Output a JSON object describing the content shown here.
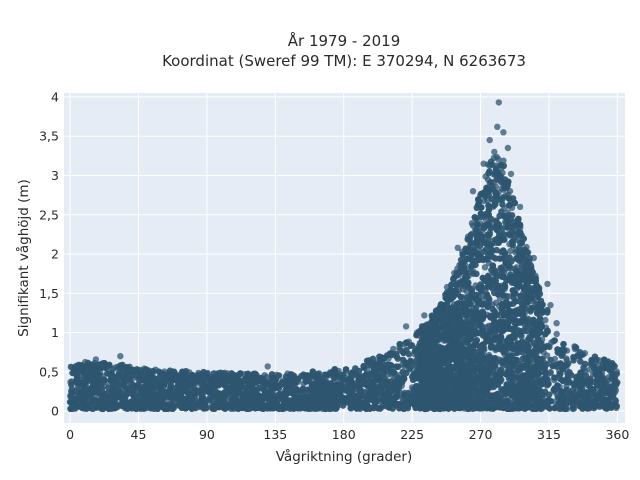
{
  "chart_data": {
    "type": "scatter",
    "title": "År 1979 - 2019",
    "subtitle": "Koordinat (Sweref 99 TM): E 370294, N 6263673",
    "xlabel": "Vågriktning (grader)",
    "ylabel": "Signifikant våghöjd (m)",
    "xlim": [
      -4,
      365
    ],
    "ylim": [
      -0.15,
      4.05
    ],
    "xticks": [
      0,
      45,
      90,
      135,
      180,
      225,
      270,
      315,
      360
    ],
    "xtick_labels": [
      "0",
      "45",
      "90",
      "135",
      "180",
      "225",
      "270",
      "315",
      "360"
    ],
    "yticks": [
      0,
      0.5,
      1,
      1.5,
      2,
      2.5,
      3,
      3.5,
      4
    ],
    "ytick_labels": [
      "0",
      "0,5",
      "1",
      "1,5",
      "2",
      "2,5",
      "3",
      "3,5",
      "4"
    ],
    "grid": true,
    "marker_color": "#2f5670",
    "background_color": "#e5ecf6",
    "envelope": {
      "x": [
        0,
        10,
        30,
        45,
        60,
        90,
        120,
        150,
        180,
        200,
        225,
        245,
        260,
        270,
        277,
        285,
        292,
        300,
        310,
        320,
        330,
        345,
        360
      ],
      "y_max": [
        0.62,
        0.63,
        0.6,
        0.56,
        0.52,
        0.5,
        0.48,
        0.48,
        0.56,
        0.68,
        0.95,
        1.4,
        2.1,
        2.8,
        3.3,
        3.2,
        2.7,
        2.1,
        1.5,
        1.05,
        0.85,
        0.7,
        0.6
      ],
      "y_min": 0.03
    },
    "peak_points": [
      {
        "x": 265,
        "y": 2.8
      },
      {
        "x": 272,
        "y": 3.15
      },
      {
        "x": 276,
        "y": 3.45
      },
      {
        "x": 279,
        "y": 3.3
      },
      {
        "x": 281,
        "y": 3.62
      },
      {
        "x": 282,
        "y": 3.93
      },
      {
        "x": 285,
        "y": 3.55
      },
      {
        "x": 288,
        "y": 3.35
      },
      {
        "x": 290,
        "y": 3.02
      },
      {
        "x": 296,
        "y": 2.6
      },
      {
        "x": 305,
        "y": 1.95
      },
      {
        "x": 314,
        "y": 1.62
      },
      {
        "x": 221,
        "y": 1.08
      },
      {
        "x": 233,
        "y": 1.22
      },
      {
        "x": 248,
        "y": 1.58
      },
      {
        "x": 255,
        "y": 2.08
      },
      {
        "x": 258,
        "y": 2.03
      },
      {
        "x": 316,
        "y": 1.35
      },
      {
        "x": 320,
        "y": 1.12
      },
      {
        "x": 17,
        "y": 0.66
      },
      {
        "x": 33,
        "y": 0.7
      },
      {
        "x": 130,
        "y": 0.57
      }
    ]
  }
}
